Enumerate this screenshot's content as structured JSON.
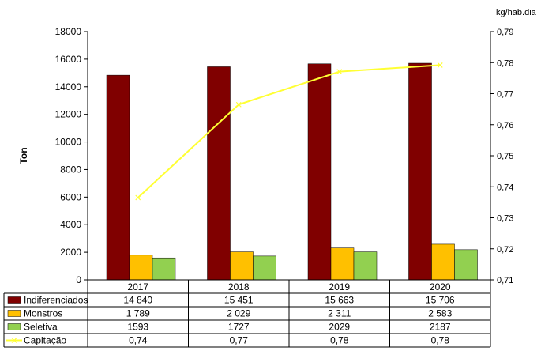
{
  "chart_data": {
    "type": "bar",
    "categories": [
      "2017",
      "2018",
      "2019",
      "2020"
    ],
    "ylabel": "Ton",
    "y2label": "kg/hab.dia",
    "ylim": [
      0,
      18000
    ],
    "ytick_step": 2000,
    "y2lim": [
      0.71,
      0.79
    ],
    "y2ticks": [
      "0,71",
      "0,72",
      "0,73",
      "0,74",
      "0,75",
      "0,76",
      "0,77",
      "0,78",
      "0,79"
    ],
    "grid": false,
    "legend": "data-table-left",
    "series": [
      {
        "name": "Indiferenciados",
        "type": "bar",
        "color": "#800000",
        "values": [
          14840,
          15451,
          15663,
          15706
        ],
        "labels": [
          "14 840",
          "15 451",
          "15 663",
          "15 706"
        ]
      },
      {
        "name": "Monstros",
        "type": "bar",
        "color": "#ffc000",
        "values": [
          1789,
          2029,
          2311,
          2583
        ],
        "labels": [
          "1 789",
          "2 029",
          "2 311",
          "2 583"
        ]
      },
      {
        "name": "Seletiva",
        "type": "bar",
        "color": "#92d050",
        "values": [
          1593,
          1727,
          2029,
          2187
        ],
        "labels": [
          "1593",
          "1727",
          "2029",
          "2187"
        ]
      },
      {
        "name": "Capitação",
        "type": "line",
        "axis": "right",
        "color": "#ffff33",
        "values": [
          0.7365,
          0.7665,
          0.7771,
          0.7792
        ],
        "labels": [
          "0,74",
          "0,77",
          "0,78",
          "0,78"
        ]
      }
    ]
  }
}
